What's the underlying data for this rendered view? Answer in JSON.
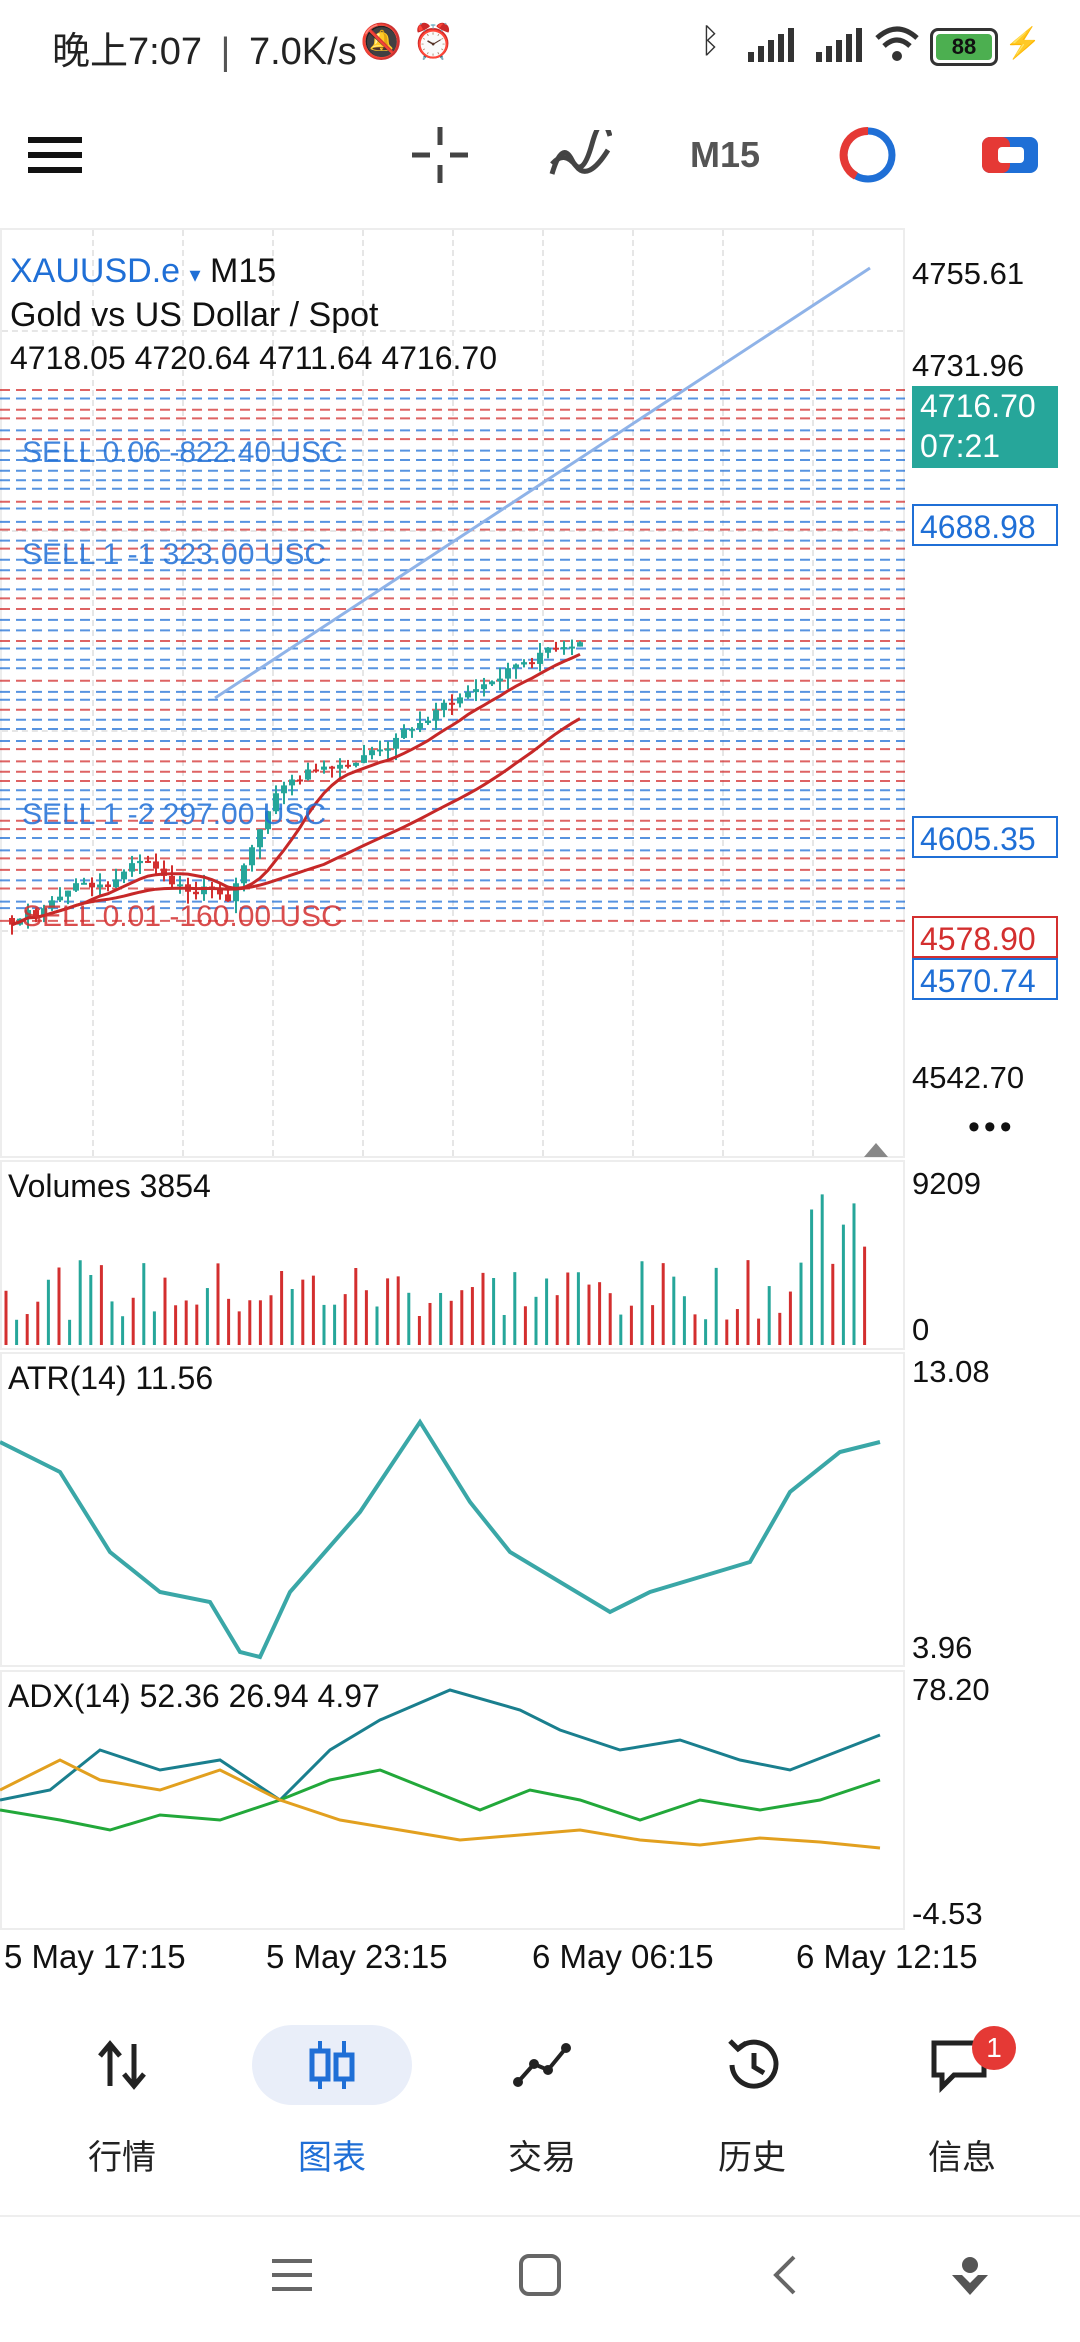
{
  "status_bar": {
    "time": "晚上7:07",
    "speed": "7.0K/s",
    "battery": "88"
  },
  "toolbar": {
    "menu_icon": "hamburger-menu-icon",
    "crosshair_icon": "crosshair-icon",
    "indicators_icon": "indicators-icon",
    "timeframe": "M15",
    "clock_icon": "one-click-trading-icon",
    "trade_icon": "trade-toggle-icon"
  },
  "chart": {
    "symbol": "XAUUSD.e",
    "symbol_caret": "▾",
    "timeframe": "M15",
    "description": "Gold vs US Dollar / Spot",
    "ohlc": "4718.05 4720.64 4711.64 4716.70",
    "price_labels": [
      "4755.61",
      "4731.96",
      "4542.70"
    ],
    "current_price": "4716.70",
    "current_time": "07:21",
    "tags": [
      {
        "text": "4688.98",
        "color": "#1f6fd6"
      },
      {
        "text": "4605.35",
        "color": "#1f6fd6"
      },
      {
        "text": "4578.90",
        "color": "#d32f2f"
      },
      {
        "text": "4570.74",
        "color": "#1f6fd6"
      }
    ],
    "order_label_samples": [
      "SELL 0.06 -822.40 USC",
      "SELL 1 -1 323.00 USC",
      "SELL 1 -2 297.00 USC",
      "SELL 0.01 -160.00 USC"
    ],
    "more": "•••",
    "colors": {
      "bull": "#26a69a",
      "bear": "#d32f2f",
      "ma": "#c62828",
      "trend": "#8fb3e8",
      "sell_line": "#d32f2f",
      "buy_line": "#1f6fd6"
    }
  },
  "volumes": {
    "label": "Volumes 3854",
    "max": "9209",
    "min": "0"
  },
  "atr": {
    "label": "ATR(14) 11.56",
    "max": "13.08",
    "min": "3.96",
    "color": "#3aa7a7"
  },
  "adx": {
    "label": "ADX(14) 52.36 26.94 4.97",
    "max": "78.20",
    "min": "-4.53",
    "colors": {
      "adx": "#1a7f8e",
      "plus": "#22a83a",
      "minus": "#e2a01f"
    }
  },
  "time_axis": [
    "5 May 17:15",
    "5 May 23:15",
    "6 May 06:15",
    "6 May 12:15"
  ],
  "bottom_nav": [
    {
      "label": "行情",
      "icon": "quotes-arrows-icon",
      "active": false
    },
    {
      "label": "图表",
      "icon": "candlestick-chart-icon",
      "active": true
    },
    {
      "label": "交易",
      "icon": "trade-line-icon",
      "active": false
    },
    {
      "label": "历史",
      "icon": "history-clock-icon",
      "active": false
    },
    {
      "label": "信息",
      "icon": "messages-icon",
      "active": false,
      "badge": "1"
    }
  ],
  "system_nav": [
    "recent-apps-icon",
    "home-icon",
    "back-icon",
    "assistant-icon"
  ]
}
